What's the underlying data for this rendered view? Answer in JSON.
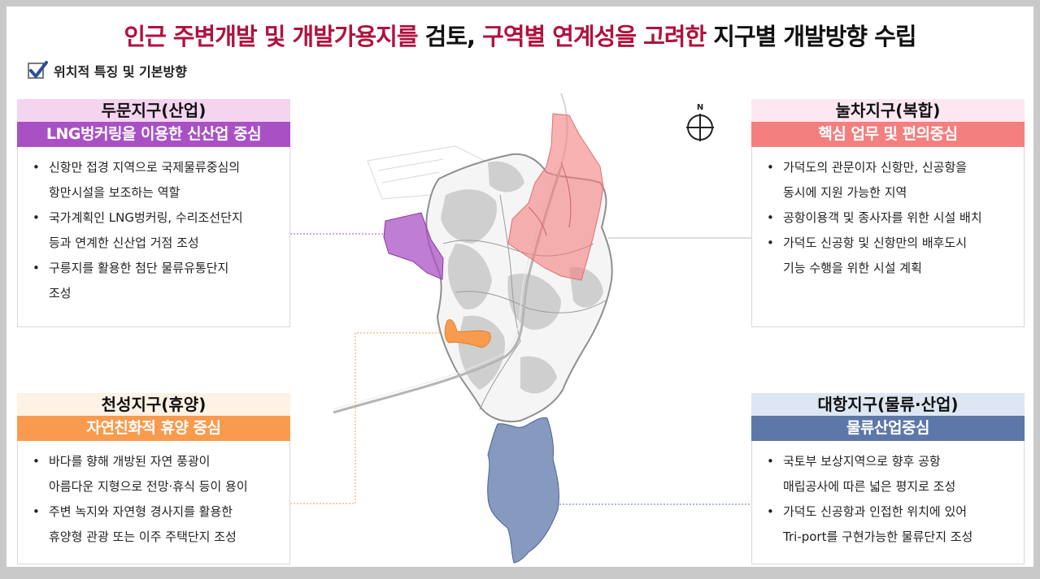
{
  "title": {
    "part1": "인근 주변개발 및 개발가용지를",
    "part2": " 검토, ",
    "part3": "구역별 연계성을 고려한",
    "part4": " 지구별 개발방향 수립"
  },
  "subheading": "위치적 특징 및 기본방향",
  "compass_label": "N",
  "colors": {
    "title_highlight": "#b0123e",
    "dumun": "#a951c4",
    "nulcha": "#f47f7f",
    "cheonseong": "#f99b4e",
    "daehang": "#5d77a8"
  },
  "zones": {
    "dumun": {
      "name": "두문지구(산업)",
      "theme": "LNG벙커링을 이용한 신산업 중심",
      "bullets": [
        [
          "신항만 접경 지역으로 국제물류중심의",
          "항만시설을 보조하는 역할"
        ],
        [
          "국가계획인 LNG벙커링, 수리조선단지",
          "등과 연계한 신산업 거점 조성"
        ],
        [
          "구릉지를 활용한 첨단 물류유통단지",
          "조성"
        ]
      ]
    },
    "nulcha": {
      "name": "눌차지구(복합)",
      "theme": "핵심 업무 및 편의중심",
      "bullets": [
        [
          "가덕도의 관문이자 신항만, 신공항을",
          "동시에 지원 가능한 지역"
        ],
        [
          "공항이용객 및 종사자를 위한 시설 배치"
        ],
        [
          "가덕도 신공항 및 신항만의 배후도시",
          "기능 수행을 위한 시설 계획"
        ]
      ]
    },
    "cheonseong": {
      "name": "천성지구(휴양)",
      "theme": "자연친화적 휴양 중심",
      "bullets": [
        [
          "바다를 향해 개방된 자연 풍광이",
          "아름다운 지형으로 전망·휴식 등이 용이"
        ],
        [
          "주변 녹지와 자연형 경사지를 활용한",
          "휴양형 관광 또는 이주 주택단지 조성"
        ]
      ]
    },
    "daehang": {
      "name": "대항지구(물류·산업)",
      "theme": "물류산업중심",
      "bullets": [
        [
          "국토부 보상지역으로 향후 공항",
          "매립공사에 따른 넓은 평지로 조성"
        ],
        [
          "가덕도 신공항과 인접한 위치에 있어",
          "Tri-port를 구현가능한 물류단지 조성"
        ]
      ]
    }
  }
}
